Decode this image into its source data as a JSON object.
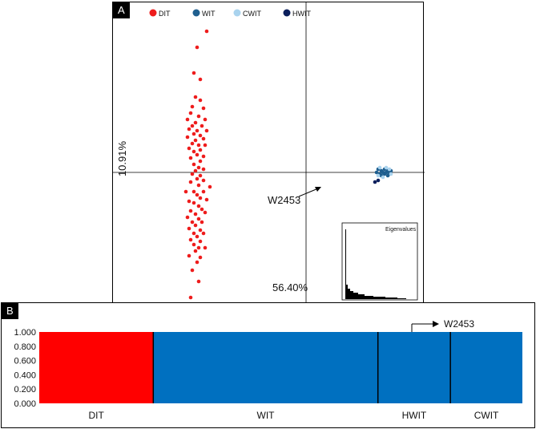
{
  "panel_a": {
    "label": "A",
    "pc1_label": "56.40%",
    "pc2_label": "10.91%",
    "legend": [
      {
        "name": "DIT",
        "color": "#ee1c1c"
      },
      {
        "name": "WIT",
        "color": "#1f5f8f"
      },
      {
        "name": "CWIT",
        "color": "#a9d3ee"
      },
      {
        "name": "HWIT",
        "color": "#0b1f5c"
      }
    ],
    "outlier_label": "W2453",
    "inset_title": "Eigenvalues"
  },
  "panel_b": {
    "label": "B",
    "outlier_label": "W2453"
  },
  "chart_data": [
    {
      "type": "scatter",
      "title": "",
      "xlabel": "56.40%",
      "ylabel": "10.91%",
      "series": [
        {
          "name": "DIT",
          "color": "#ee1c1c",
          "points": [
            [
              -0.62,
              0.88
            ],
            [
              -0.68,
              0.78
            ],
            [
              -0.7,
              0.62
            ],
            [
              -0.66,
              0.58
            ],
            [
              -0.69,
              0.47
            ],
            [
              -0.66,
              0.45
            ],
            [
              -0.71,
              0.41
            ],
            [
              -0.64,
              0.4
            ],
            [
              -0.72,
              0.37
            ],
            [
              -0.67,
              0.35
            ],
            [
              -0.74,
              0.33
            ],
            [
              -0.63,
              0.33
            ],
            [
              -0.69,
              0.31
            ],
            [
              -0.71,
              0.29
            ],
            [
              -0.65,
              0.29
            ],
            [
              -0.73,
              0.27
            ],
            [
              -0.68,
              0.26
            ],
            [
              -0.62,
              0.26
            ],
            [
              -0.7,
              0.24
            ],
            [
              -0.66,
              0.23
            ],
            [
              -0.74,
              0.22
            ],
            [
              -0.64,
              0.21
            ],
            [
              -0.69,
              0.2
            ],
            [
              -0.71,
              0.18
            ],
            [
              -0.67,
              0.17
            ],
            [
              -0.63,
              0.17
            ],
            [
              -0.73,
              0.15
            ],
            [
              -0.66,
              0.14
            ],
            [
              -0.7,
              0.13
            ],
            [
              -0.68,
              0.11
            ],
            [
              -0.64,
              0.1
            ],
            [
              -0.72,
              0.09
            ],
            [
              -0.66,
              0.07
            ],
            [
              -0.7,
              0.05
            ],
            [
              -0.67,
              0.03
            ],
            [
              -0.64,
              0.02
            ],
            [
              -0.69,
              0.01
            ],
            [
              -0.71,
              -0.01
            ],
            [
              -0.66,
              -0.02
            ],
            [
              -0.68,
              -0.04
            ],
            [
              -0.64,
              -0.05
            ],
            [
              -0.72,
              -0.06
            ],
            [
              -0.67,
              -0.08
            ],
            [
              -0.6,
              -0.09
            ],
            [
              -0.75,
              -0.12
            ],
            [
              -0.7,
              -0.12
            ],
            [
              -0.64,
              -0.12
            ],
            [
              -0.68,
              -0.14
            ],
            [
              -0.66,
              -0.16
            ],
            [
              -0.73,
              -0.18
            ],
            [
              -0.62,
              -0.17
            ],
            [
              -0.7,
              -0.19
            ],
            [
              -0.67,
              -0.21
            ],
            [
              -0.65,
              -0.23
            ],
            [
              -0.72,
              -0.24
            ],
            [
              -0.69,
              -0.26
            ],
            [
              -0.63,
              -0.25
            ],
            [
              -0.74,
              -0.28
            ],
            [
              -0.67,
              -0.29
            ],
            [
              -0.71,
              -0.31
            ],
            [
              -0.65,
              -0.31
            ],
            [
              -0.69,
              -0.33
            ],
            [
              -0.73,
              -0.35
            ],
            [
              -0.66,
              -0.36
            ],
            [
              -0.7,
              -0.38
            ],
            [
              -0.64,
              -0.38
            ],
            [
              -0.68,
              -0.4
            ],
            [
              -0.72,
              -0.42
            ],
            [
              -0.66,
              -0.43
            ],
            [
              -0.7,
              -0.45
            ],
            [
              -0.67,
              -0.47
            ],
            [
              -0.63,
              -0.47
            ],
            [
              -0.69,
              -0.49
            ],
            [
              -0.73,
              -0.52
            ],
            [
              -0.66,
              -0.53
            ],
            [
              -0.68,
              -0.56
            ],
            [
              -0.71,
              -0.61
            ],
            [
              -0.67,
              -0.68
            ],
            [
              -0.72,
              -0.78
            ]
          ]
        },
        {
          "name": "WIT",
          "color": "#1f5f8f",
          "points": [
            [
              0.45,
              0.02
            ],
            [
              0.47,
              0.01
            ],
            [
              0.49,
              0.02
            ],
            [
              0.51,
              0.01
            ],
            [
              0.46,
              -0.01
            ],
            [
              0.48,
              0.0
            ],
            [
              0.5,
              0.0
            ],
            [
              0.52,
              -0.01
            ],
            [
              0.44,
              0.0
            ],
            [
              0.53,
              0.01
            ],
            [
              0.47,
              -0.02
            ],
            [
              0.49,
              -0.01
            ],
            [
              0.51,
              -0.02
            ]
          ]
        },
        {
          "name": "CWIT",
          "color": "#a9d3ee",
          "points": [
            [
              0.46,
              0.03
            ],
            [
              0.5,
              0.03
            ],
            [
              0.48,
              -0.03
            ],
            [
              0.52,
              0.02
            ],
            [
              0.45,
              -0.02
            ],
            [
              0.53,
              -0.01
            ]
          ]
        },
        {
          "name": "HWIT",
          "color": "#0b1f5c",
          "points": [
            [
              0.43,
              -0.06
            ],
            [
              0.45,
              -0.05
            ]
          ]
        }
      ]
    },
    {
      "type": "bar",
      "title": "",
      "ylim": [
        0,
        1
      ],
      "yticks": [
        "0.000",
        "0.200",
        "0.400",
        "0.600",
        "0.800",
        "1.000"
      ],
      "groups": [
        {
          "name": "DIT",
          "width_fraction": 0.236,
          "cluster_color": "#ff0000",
          "value": 1.0
        },
        {
          "name": "WIT",
          "width_fraction": 0.465,
          "cluster_color": "#0070c0",
          "value": 1.0
        },
        {
          "name": "HWIT",
          "width_fraction": 0.15,
          "cluster_color": "#0070c0",
          "value": 1.0
        },
        {
          "name": "CWIT",
          "width_fraction": 0.149,
          "cluster_color": "#0070c0",
          "value": 1.0
        }
      ]
    }
  ]
}
